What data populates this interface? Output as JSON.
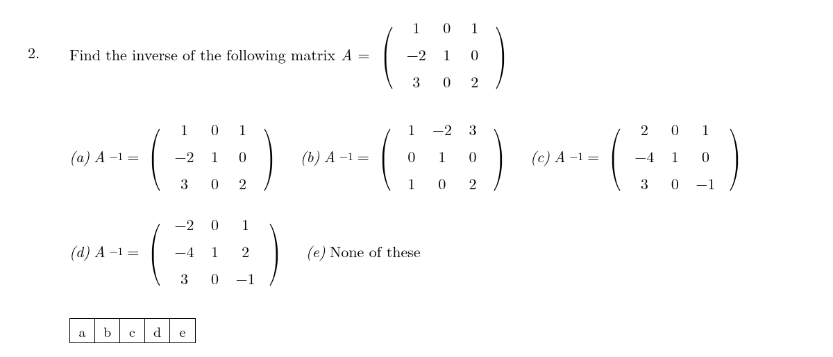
{
  "question": {
    "number": "2.",
    "text_before": "Find the inverse of the following matrix ",
    "var": "A",
    "equals": " = ",
    "matrix": [
      [
        "1",
        "0",
        "1"
      ],
      [
        "−2",
        "1",
        "0"
      ],
      [
        "3",
        "0",
        "2"
      ]
    ]
  },
  "Ainv_label": "A",
  "Ainv_sup": "−1",
  "eq": " = ",
  "options": {
    "a": {
      "label": "(a)",
      "matrix": [
        [
          "1",
          "0",
          "1"
        ],
        [
          "−2",
          "1",
          "0"
        ],
        [
          "3",
          "0",
          "2"
        ]
      ]
    },
    "b": {
      "label": "(b)",
      "matrix": [
        [
          "1",
          "−2",
          "3"
        ],
        [
          "0",
          "1",
          "0"
        ],
        [
          "1",
          "0",
          "2"
        ]
      ]
    },
    "c": {
      "label": "(c)",
      "matrix": [
        [
          "2",
          "0",
          "1"
        ],
        [
          "−4",
          "1",
          "0"
        ],
        [
          "3",
          "0",
          "−1"
        ]
      ]
    },
    "d": {
      "label": "(d)",
      "matrix": [
        [
          "−2",
          "0",
          "1"
        ],
        [
          "−4",
          "1",
          "2"
        ],
        [
          "3",
          "0",
          "−1"
        ]
      ]
    },
    "e": {
      "label": "(e)",
      "text": "None of these"
    }
  },
  "answer_buttons": [
    "a",
    "b",
    "c",
    "d",
    "e"
  ]
}
